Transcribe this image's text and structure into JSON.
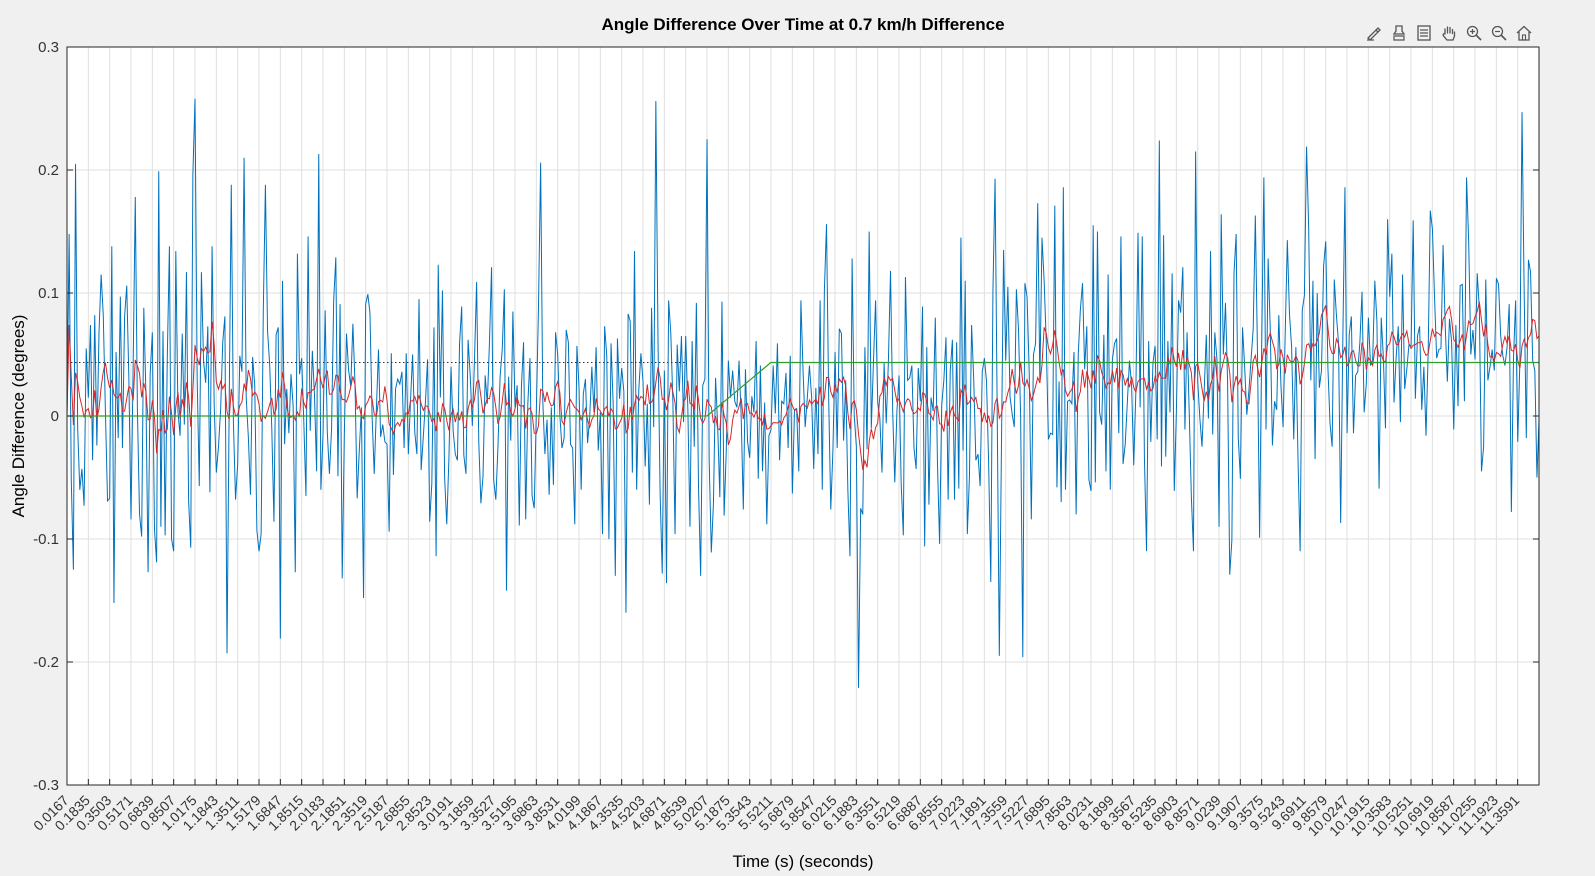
{
  "chart_data": {
    "type": "line",
    "title": "Angle Difference Over Time at 0.7 km/h Difference",
    "xlabel": "Time (s) (seconds)",
    "ylabel": "Angle Difference (degrees)",
    "xlim": [
      0.0167,
      11.5259
    ],
    "ylim": [
      -0.3,
      0.3
    ],
    "yticks": [
      -0.3,
      -0.2,
      -0.1,
      0,
      0.1,
      0.2,
      0.3
    ],
    "yticklabels": [
      "-0.3",
      "-0.2",
      "-0.1",
      "0",
      "0.1",
      "0.2",
      "0.3"
    ],
    "xtick_start": 0.0167,
    "xtick_step": 0.1668,
    "xticklabels": [
      "0.0167",
      "0.1835",
      "0.3503",
      "0.5171",
      "0.6839",
      "0.8507",
      "1.0175",
      "1.1843",
      "1.3511",
      "1.5179",
      "1.6847",
      "1.8515",
      "2.0183",
      "2.1851",
      "2.3519",
      "2.5187",
      "2.6855",
      "2.8523",
      "3.0191",
      "3.1859",
      "3.3527",
      "3.5195",
      "3.6863",
      "3.8531",
      "4.0199",
      "4.1867",
      "4.3535",
      "4.5203",
      "4.6871",
      "4.8539",
      "5.0207",
      "5.1875",
      "5.3543",
      "5.5211",
      "5.6879",
      "5.8547",
      "6.0215",
      "6.1883",
      "6.3551",
      "6.5219",
      "6.6887",
      "6.8555",
      "7.0223",
      "7.1891",
      "7.3559",
      "7.5227",
      "7.6895",
      "7.8563",
      "8.0231",
      "8.1899",
      "8.3567",
      "8.5235",
      "8.6903",
      "8.8571",
      "9.0239",
      "9.1907",
      "9.3575",
      "9.5243",
      "9.6911",
      "9.8579",
      "10.0247",
      "10.1915",
      "10.3583",
      "10.5251",
      "10.6919",
      "10.8587",
      "11.0255",
      "11.1923",
      "11.3591"
    ],
    "grid": true,
    "reference_line": {
      "y": 0.0435,
      "style": "dotted",
      "color": "#333333",
      "x_end": 4.86
    },
    "series": [
      {
        "color": "#0072BD",
        "sample_step": 0.016681,
        "values": [
          0.0,
          0.148,
          -0.052,
          -0.125,
          0.205,
          -0.01,
          -0.06,
          -0.043,
          -0.073,
          0.055,
          0.015,
          0.074,
          -0.036,
          0.082,
          -0.024,
          0.068,
          0.115,
          0.082,
          0.004,
          -0.069,
          -0.067,
          0.138,
          -0.152,
          0.052,
          -0.018,
          0.097,
          -0.026,
          0.081,
          0.106,
          0.03,
          -0.084,
          0.04,
          0.178,
          0.005,
          -0.08,
          -0.098,
          0.088,
          0.017,
          -0.127,
          0.035,
          0.068,
          -0.092,
          -0.119,
          0.199,
          -0.09,
          0.069,
          -0.097,
          0.047,
          0.138,
          -0.1,
          -0.11,
          0.134,
          0.004,
          -0.016,
          0.067,
          -0.007,
          0.117,
          -0.069,
          -0.107,
          0.196,
          0.258,
          0.032,
          -0.057,
          0.117,
          0.045,
          0.027,
          0.073,
          -0.062,
          0.138,
          0.008,
          -0.046,
          -0.025,
          0.005,
          0.06,
          0.081,
          -0.193,
          0.005,
          0.188,
          -0.005,
          -0.068,
          -0.039,
          0.049,
          0.036,
          0.21,
          0.015,
          -0.017,
          -0.064,
          0.048,
          0.025,
          -0.093,
          -0.11,
          -0.096,
          0.085,
          0.188,
          0.069,
          0.042,
          -0.011,
          -0.086,
          0.066,
          0.072,
          -0.181,
          0.11,
          -0.023,
          0.022,
          -0.014,
          0.034,
          0.008,
          -0.127,
          0.132,
          0.034,
          0.047,
          -0.005,
          -0.065,
          0.146,
          -0.012,
          0.053,
          0.017,
          -0.045,
          0.213,
          -0.06,
          -0.015,
          0.086,
          -0.013,
          -0.047,
          -0.011,
          0.094,
          0.129,
          -0.049,
          0.091,
          -0.132,
          -0.014,
          0.067,
          0.037,
          0.024,
          0.075,
          0.026,
          -0.067,
          -0.028,
          0.007,
          -0.148,
          0.091,
          0.099,
          0.084,
          0.0,
          -0.047,
          0.005,
          0.054,
          -0.017,
          -0.007,
          -0.021,
          -0.023,
          -0.094,
          0.051,
          -0.048,
          0.022,
          0.03,
          0.026,
          0.036,
          -0.026,
          0.051,
          -0.031,
          0.012,
          0.05,
          -0.013,
          -0.031,
          0.095,
          -0.044,
          -0.017,
          0.011,
          0.046,
          -0.086,
          -0.055,
          0.072,
          -0.114,
          0.123,
          0.015,
          0.102,
          -0.05,
          -0.088,
          -0.035,
          0.04,
          -0.012,
          -0.031,
          -0.036,
          0.059,
          0.089,
          -0.032,
          -0.047,
          0.062,
          0.033,
          -0.008,
          0.046,
          0.109,
          -0.021,
          -0.071,
          -0.049,
          0.033,
          0.01,
          0.059,
          0.121,
          -0.052,
          -0.068,
          -0.025,
          0.032,
          0.054,
          0.103,
          -0.142,
          0.032,
          -0.02,
          0.085,
          0.007,
          0.025,
          -0.089,
          0.024,
          0.06,
          -0.084,
          0.01,
          0.047,
          -0.065,
          -0.075,
          0.005,
          0.089,
          0.206,
          0.013,
          -0.031,
          -0.003,
          -0.064,
          0.007,
          -0.056,
          0.068,
          0.05,
          0.001,
          -0.026,
          -0.018,
          0.07,
          0.06,
          -0.023,
          -0.026,
          -0.088,
          0.057,
          0.023,
          -0.06,
          0.018,
          0.03,
          -0.022,
          -0.001,
          0.04,
          0.003,
          0.056,
          -0.028,
          0.003,
          -0.096,
          0.073,
          0.049,
          -0.1,
          0.059,
          0.01,
          -0.13,
          0.063,
          0.014,
          0.039,
          0.02,
          -0.16,
          0.083,
          0.077,
          -0.046,
          0.134,
          -0.06,
          0.021,
          0.051,
          0.028,
          -0.041,
          0.01,
          -0.072,
          0.088,
          -0.009,
          0.256,
          0.064,
          -0.062,
          -0.128,
          0.037,
          -0.136,
          0.094,
          0.068,
          0.011,
          -0.096,
          0.058,
          0.02,
          0.065,
          -0.005,
          0.065,
          0.006,
          -0.09,
          0.061,
          -0.025,
          0.092,
          -0.057,
          -0.13,
          0.025,
          0.03,
          0.225,
          -0.036,
          -0.111,
          -0.071,
          0.031,
          -0.009,
          -0.066,
          0.093,
          -0.081,
          -0.029,
          0.045,
          0.015,
          0.037,
          0.012,
          0.007,
          0.045,
          0.0,
          -0.076,
          0.038,
          -0.021,
          -0.034,
          0.016,
          0.003,
          0.061,
          -0.051,
          0.041,
          -0.045,
          0.011,
          -0.088,
          -0.016,
          -0.011,
          0.041,
          0.002,
          0.059,
          -0.036,
          0.012,
          0.01,
          0.035,
          -0.026,
          0.049,
          -0.063,
          0.005,
          0.006,
          -0.045,
          0.094,
          0.037,
          -0.009,
          0.015,
          0.041,
          0.016,
          -0.043,
          0.023,
          -0.031,
          0.094,
          -0.06,
          0.102,
          0.156,
          0.016,
          -0.076,
          -0.028,
          0.052,
          -0.026,
          0.071,
          0.067,
          -0.02,
          0.029,
          -0.06,
          -0.114,
          0.128,
          0.0,
          -0.025,
          -0.221,
          -0.075,
          -0.08,
          0.056,
          -0.027,
          0.15,
          -0.01,
          0.044,
          0.094,
          0.011,
          -0.002,
          -0.046,
          0.043,
          -0.006,
          0.044,
          0.118,
          0.005,
          -0.054,
          0.004,
          0.033,
          -0.055,
          -0.097,
          0.113,
          0.029,
          0.031,
          0.041,
          -0.026,
          -0.043,
          0.039,
          0.012,
          0.089,
          -0.106,
          0.056,
          -0.072,
          0.015,
          0.004,
          0.08,
          -0.038,
          -0.104,
          0.009,
          0.029,
          0.064,
          -0.068,
          0.037,
          0.062,
          -0.068,
          0.06,
          -0.059,
          0.145,
          -0.028,
          0.11,
          -0.096,
          -0.049,
          0.074,
          0.03,
          -0.036,
          -0.031,
          -0.057,
          0.036,
          0.047,
          0.028,
          -0.039,
          -0.135,
          0.101,
          0.193,
          0.004,
          -0.195,
          -0.024,
          0.135,
          0.045,
          0.105,
          0.016,
          0.002,
          -0.009,
          0.103,
          0.07,
          -0.001,
          -0.196,
          0.108,
          0.097,
          0.036,
          -0.084,
          0.05,
          0.059,
          0.173,
          0.027,
          0.145,
          0.11,
          0.06,
          -0.019,
          -0.014,
          -0.015,
          0.171,
          -0.058,
          0.028,
          -0.07,
          0.186,
          -0.06,
          0.012,
          0.013,
          0.01,
          0.052,
          -0.08,
          0.05,
          0.087,
          0.108,
          0.038,
          0.073,
          -0.052,
          -0.061,
          0.155,
          -0.054,
          0.15,
          0.003,
          -0.007,
          0.066,
          -0.045,
          0.115,
          -0.06,
          0.046,
          0.059,
          0.063,
          -0.014,
          0.146,
          -0.039,
          -0.023,
          0.011,
          0.045,
          0.025,
          -0.04,
          0.02,
          0.149,
          0.007,
          0.146,
          -0.033,
          -0.11,
          0.061,
          -0.021,
          0.043,
          0.057,
          -0.019,
          0.224,
          -0.041,
          0.147,
          -0.033,
          0.061,
          0.003,
          0.116,
          -0.061,
          0.004,
          0.094,
          0.084,
          0.121,
          -0.011,
          0.068,
          0.004,
          -0.065,
          -0.11,
          0.215,
          0.028,
          -0.002,
          -0.025,
          0.019,
          0.066,
          -0.002,
          0.134,
          -0.015,
          0.068,
          0.046,
          -0.09,
          0.164,
          0.05,
          0.092,
          0.027,
          -0.129,
          -0.101,
          0.116,
          0.148,
          -0.018,
          -0.051,
          0.072,
          0.04,
          0.001,
          0.021,
          0.046,
          0.071,
          0.163,
          0.052,
          -0.099,
          0.061,
          0.194,
          -0.011,
          0.128,
          0.07,
          -0.024,
          0.012,
          0.005,
          0.082,
          0.025,
          -0.009,
          0.067,
          0.143,
          0.083,
          0.056,
          -0.019,
          0.056,
          -0.035,
          -0.11,
          0.086,
          0.098,
          0.219,
          0.153,
          0.029,
          0.11,
          -0.035,
          0.1,
          0.023,
          0.037,
          0.122,
          0.142,
          0.04,
          -0.006,
          -0.025,
          0.111,
          0.082,
          0.059,
          -0.087,
          0.061,
          0.186,
          -0.014,
          0.066,
          0.081,
          -0.014,
          0.033,
          0.036,
          0.06,
          0.101,
          0.003,
          0.026,
          0.08,
          0.041,
          0.046,
          0.11,
          0.076,
          -0.059,
          0.08,
          0.048,
          -0.01,
          0.16,
          0.097,
          0.132,
          0.011,
          0.048,
          0.073,
          -0.005,
          0.115,
          0.022,
          0.038,
          0.058,
          0.057,
          0.159,
          0.014,
          0.065,
          0.073,
          0.005,
          0.04,
          -0.016,
          0.051,
          0.167,
          0.152,
          0.096,
          0.047,
          0.054,
          0.055,
          0.139,
          0.073,
          0.028,
          0.079,
          0.06,
          -0.011,
          0.074,
          0.008,
          0.106,
          0.107,
          0.012,
          0.194,
          0.142,
          0.05,
          0.07,
          0.046,
          0.116,
          0.087,
          -0.045,
          -0.025,
          0.111,
          0.029,
          0.04,
          0.054,
          0.037,
          0.112,
          0.107,
          0.065,
          0.049,
          0.041,
          0.056,
          0.091,
          -0.078,
          0.047,
          0.094,
          -0.021,
          0.045,
          0.247,
          0.102,
          -0.018,
          0.127,
          0.117,
          0.045,
          0.037,
          -0.05,
          -0.001,
          0.056,
          0.185,
          0.12,
          0.103,
          0.041,
          0.085,
          -0.01,
          0.015,
          0.026,
          0.092,
          0.129,
          0.045,
          0.051,
          -0.007,
          0.009,
          0.084,
          0.016,
          0.004,
          0.148,
          -0.022,
          0.137,
          0.068,
          0.027,
          0.023,
          0.095,
          -0.009,
          0.059,
          0.075,
          0.059,
          0.018,
          0.0,
          0.121,
          0.052,
          0.084,
          0.05,
          0.151,
          0.049,
          0.061,
          0.052,
          0.014,
          0.08,
          0.076,
          0.125,
          0.022,
          0.013,
          0.085,
          0.029,
          0.11,
          -0.039,
          0.111,
          0.098,
          0.058,
          -0.008,
          0.066,
          0.054,
          0.134,
          0.11,
          0.043,
          0.059,
          0.073,
          0.055,
          0.009,
          0.079,
          0.01,
          0.049,
          0.095,
          -0.012,
          0.065,
          0.116,
          0.085,
          -0.004,
          0.052,
          -0.062,
          0.011,
          0.076,
          -0.038,
          0.104,
          0.134,
          0.052,
          0.014,
          0.029,
          0.099,
          -0.07,
          0.043,
          0.089,
          0.04,
          0.045,
          0.082,
          0.014,
          0.026,
          0.036,
          0.084,
          0.099,
          0.061,
          0.038,
          0.027,
          0.13,
          0.12,
          0.055,
          0.018,
          0.071,
          0.045,
          0.056,
          0.017,
          0.093,
          0.071,
          0.013,
          0.072,
          0.039,
          0.108,
          0.061,
          0.063,
          0.032,
          0.067,
          0.06,
          -0.003,
          0.019,
          0.087,
          0.066,
          0.037,
          0.052,
          0.056,
          0.036,
          0.094,
          0.038,
          0.073,
          0.008,
          0.101,
          0.044,
          0.032,
          0.081,
          0.079,
          0.041,
          0.036,
          0.039,
          -0.058,
          0.044,
          0.074,
          0.055,
          0.097,
          0.085,
          0.062,
          -0.002,
          0.012,
          0.025,
          0.049,
          0.04,
          0.053,
          0.064,
          0.073,
          -0.083,
          0.079
        ]
      },
      {
        "color": "#D62728",
        "note_window": 10
      },
      {
        "color": "#2CA02C",
        "steps": [
          [
            0.0167,
            0.0
          ],
          [
            5.0207,
            0.0
          ],
          [
            5.52,
            0.0435
          ],
          [
            11.5259,
            0.0435
          ]
        ]
      }
    ]
  },
  "toolbar": {
    "icons": [
      "edit-brush-icon",
      "data-cursor-icon",
      "legend-icon",
      "pan-hand-icon",
      "zoom-in-icon",
      "zoom-out-icon",
      "home-icon"
    ]
  }
}
